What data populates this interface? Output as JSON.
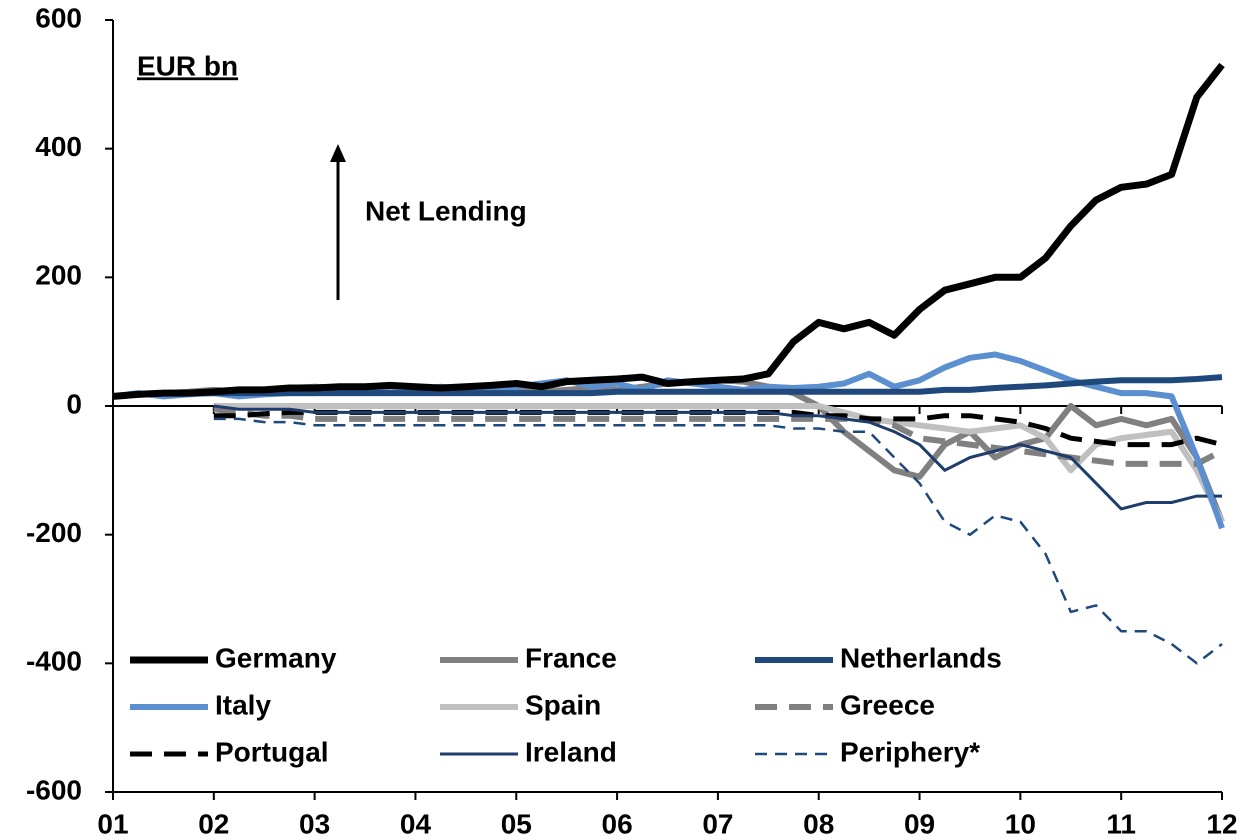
{
  "chart_data": {
    "type": "line",
    "annotations": [
      "EUR bn",
      "Net Lending"
    ],
    "x": [
      1,
      1.25,
      1.5,
      1.75,
      2,
      2.25,
      2.5,
      2.75,
      3,
      3.25,
      3.5,
      3.75,
      4,
      4.25,
      4.5,
      4.75,
      5,
      5.25,
      5.5,
      5.75,
      6,
      6.25,
      6.5,
      6.75,
      7,
      7.25,
      7.5,
      7.75,
      8,
      8.25,
      8.5,
      8.75,
      9,
      9.25,
      9.5,
      9.75,
      10,
      10.25,
      10.5,
      10.75,
      11,
      11.25,
      11.5,
      11.75,
      12
    ],
    "xlim": [
      1,
      12
    ],
    "xticks": [
      {
        "value": 1,
        "label": "01"
      },
      {
        "value": 2,
        "label": "02"
      },
      {
        "value": 3,
        "label": "03"
      },
      {
        "value": 4,
        "label": "04"
      },
      {
        "value": 5,
        "label": "05"
      },
      {
        "value": 6,
        "label": "06"
      },
      {
        "value": 7,
        "label": "07"
      },
      {
        "value": 8,
        "label": "08"
      },
      {
        "value": 9,
        "label": "09"
      },
      {
        "value": 10,
        "label": "10"
      },
      {
        "value": 11,
        "label": "11"
      },
      {
        "value": 12,
        "label": "12"
      }
    ],
    "ylim": [
      -600,
      600
    ],
    "yticks": [
      -600,
      -400,
      -200,
      0,
      200,
      400,
      600
    ],
    "series": [
      {
        "name": "Germany",
        "color": "#000000",
        "dashed": false,
        "values": [
          15,
          18,
          20,
          20,
          22,
          25,
          25,
          28,
          28,
          30,
          30,
          32,
          30,
          28,
          30,
          32,
          35,
          30,
          38,
          40,
          42,
          45,
          35,
          38,
          40,
          42,
          50,
          100,
          130,
          120,
          130,
          110,
          150,
          180,
          190,
          200,
          200,
          230,
          280,
          320,
          340,
          345,
          360,
          480,
          530
        ]
      },
      {
        "name": "France",
        "color": "#808080",
        "dashed": false,
        "values": [
          15,
          18,
          20,
          22,
          25,
          22,
          25,
          28,
          30,
          28,
          25,
          30,
          28,
          25,
          22,
          25,
          25,
          22,
          25,
          28,
          25,
          30,
          35,
          38,
          40,
          38,
          30,
          20,
          0,
          -40,
          -70,
          -100,
          -110,
          -60,
          -40,
          -80,
          -60,
          -50,
          0,
          -30,
          -20,
          -30,
          -20,
          -80,
          -180
        ]
      },
      {
        "name": "Netherlands",
        "color": "#1f497d",
        "dashed": false,
        "values": [
          15,
          18,
          20,
          20,
          20,
          20,
          20,
          20,
          20,
          20,
          20,
          20,
          20,
          20,
          20,
          20,
          20,
          20,
          20,
          20,
          22,
          22,
          22,
          22,
          22,
          22,
          22,
          22,
          22,
          22,
          22,
          22,
          22,
          25,
          25,
          28,
          30,
          32,
          35,
          38,
          40,
          40,
          40,
          42,
          45
        ]
      },
      {
        "name": "Italy",
        "color": "#5b8fd0",
        "dashed": false,
        "values": [
          15,
          20,
          15,
          18,
          20,
          15,
          18,
          20,
          20,
          22,
          25,
          20,
          25,
          30,
          25,
          28,
          30,
          35,
          40,
          30,
          35,
          25,
          40,
          35,
          30,
          25,
          30,
          28,
          30,
          35,
          50,
          30,
          40,
          60,
          75,
          80,
          70,
          55,
          40,
          30,
          20,
          20,
          15,
          -80,
          -190
        ]
      },
      {
        "name": "Spain",
        "color": "#c0c0c0",
        "dashed": false,
        "values": [
          null,
          null,
          null,
          null,
          0,
          0,
          0,
          0,
          0,
          0,
          0,
          0,
          0,
          0,
          0,
          0,
          0,
          0,
          0,
          0,
          0,
          0,
          0,
          0,
          0,
          0,
          0,
          0,
          0,
          -10,
          -20,
          -25,
          -30,
          -35,
          -40,
          -35,
          -30,
          -50,
          -100,
          -60,
          -50,
          -45,
          -40,
          -100,
          -180
        ]
      },
      {
        "name": "Greece",
        "color": "#808080",
        "dashed": true,
        "values": [
          null,
          null,
          null,
          null,
          -5,
          -10,
          -15,
          -15,
          -20,
          -20,
          -20,
          -20,
          -20,
          -20,
          -20,
          -20,
          -20,
          -20,
          -20,
          -20,
          -20,
          -20,
          -20,
          -20,
          -20,
          -20,
          -20,
          -20,
          -20,
          -20,
          -20,
          -30,
          -50,
          -55,
          -60,
          -65,
          -70,
          -75,
          -80,
          -85,
          -90,
          -90,
          -90,
          -90,
          -70
        ]
      },
      {
        "name": "Portugal",
        "color": "#000000",
        "dashed": true,
        "values": [
          null,
          null,
          null,
          null,
          -15,
          -15,
          -12,
          -10,
          -10,
          -10,
          -10,
          -10,
          -10,
          -10,
          -10,
          -10,
          -10,
          -10,
          -10,
          -10,
          -10,
          -10,
          -10,
          -10,
          -10,
          -10,
          -10,
          -10,
          -15,
          -15,
          -20,
          -20,
          -20,
          -15,
          -15,
          -20,
          -25,
          -35,
          -50,
          -55,
          -60,
          -60,
          -60,
          -50,
          -60
        ]
      },
      {
        "name": "Ireland",
        "color": "#1f3d6b",
        "dashed": false,
        "values": [
          null,
          null,
          null,
          null,
          0,
          -5,
          -5,
          -5,
          -10,
          -10,
          -10,
          -10,
          -10,
          -10,
          -10,
          -10,
          -10,
          -10,
          -10,
          -10,
          -10,
          -10,
          -10,
          -10,
          -10,
          -10,
          -10,
          -15,
          -15,
          -20,
          -25,
          -40,
          -60,
          -100,
          -80,
          -70,
          -60,
          -70,
          -80,
          -120,
          -160,
          -150,
          -150,
          -140,
          -140
        ]
      },
      {
        "name": "Periphery*",
        "color": "#1f497d",
        "dashed": true,
        "values": [
          null,
          null,
          null,
          null,
          -20,
          -20,
          -25,
          -25,
          -30,
          -30,
          -30,
          -30,
          -30,
          -30,
          -30,
          -30,
          -30,
          -30,
          -30,
          -30,
          -30,
          -30,
          -30,
          -30,
          -30,
          -30,
          -30,
          -35,
          -35,
          -40,
          -40,
          -80,
          -120,
          -180,
          -200,
          -170,
          -180,
          -230,
          -320,
          -310,
          -350,
          -350,
          -370,
          -400,
          -370
        ]
      }
    ]
  }
}
